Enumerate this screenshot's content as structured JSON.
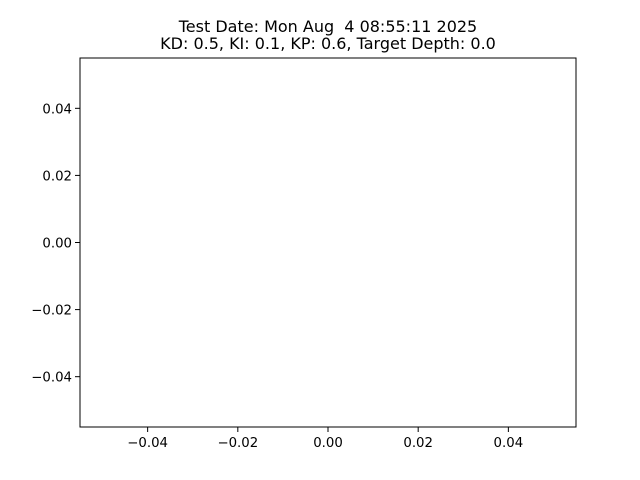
{
  "chart_data": {
    "type": "line",
    "title_lines": [
      "Test Date: Mon Aug  4 08:55:11 2025",
      "KD: 0.5, KI: 0.1, KP: 0.6, Target Depth: 0.0"
    ],
    "xlabel": "",
    "ylabel": "",
    "xlim": [
      -0.055,
      0.055
    ],
    "ylim": [
      -0.055,
      0.055
    ],
    "x_ticks": [
      -0.04,
      -0.02,
      0.0,
      0.02,
      0.04
    ],
    "x_tick_labels": [
      "−0.04",
      "−0.02",
      "0.00",
      "0.02",
      "0.04"
    ],
    "y_ticks": [
      0.04,
      0.02,
      0.0,
      -0.02,
      -0.04
    ],
    "y_tick_labels": [
      "0.04",
      "0.02",
      "0.00",
      "−0.02",
      "−0.04"
    ],
    "series": [],
    "grid": false,
    "legend": null
  }
}
